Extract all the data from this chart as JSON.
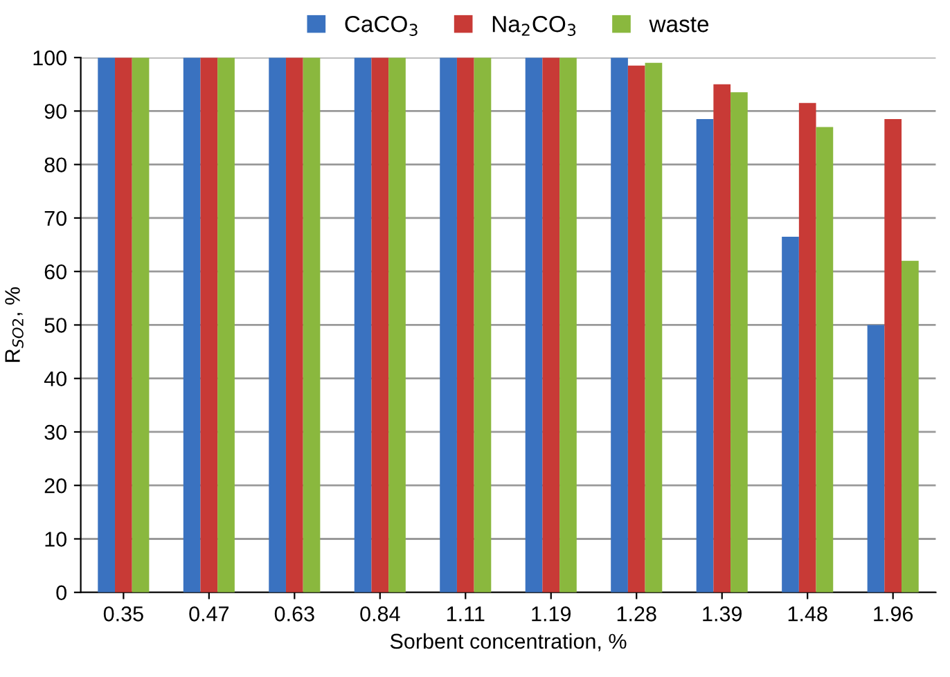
{
  "chart_data": {
    "type": "bar",
    "xlabel": "Sorbent concentration, %",
    "ylabel": "R$_{SO2}$, %",
    "categories": [
      "0.35",
      "0.47",
      "0.63",
      "0.84",
      "1.11",
      "1.19",
      "1.28",
      "1.39",
      "1.48",
      "1.96"
    ],
    "series": [
      {
        "name": "CaCO$_{3}$",
        "color": "#3a72c0",
        "values": [
          100,
          100,
          100,
          100,
          100,
          100,
          100,
          88.5,
          66.5,
          50
        ]
      },
      {
        "name": "Na$_{2}$CO$_{3}$",
        "color": "#c83a36",
        "values": [
          100,
          100,
          100,
          100,
          100,
          100,
          98.5,
          95,
          91.5,
          88.5
        ]
      },
      {
        "name": "waste",
        "color": "#8ab83e",
        "values": [
          100,
          100,
          100,
          100,
          100,
          100,
          99,
          93.5,
          87,
          62
        ]
      }
    ],
    "ylim": [
      0,
      100
    ],
    "yticks": [
      0,
      10,
      20,
      30,
      40,
      50,
      60,
      70,
      80,
      90,
      100
    ],
    "grid": "y",
    "legend": "top"
  }
}
